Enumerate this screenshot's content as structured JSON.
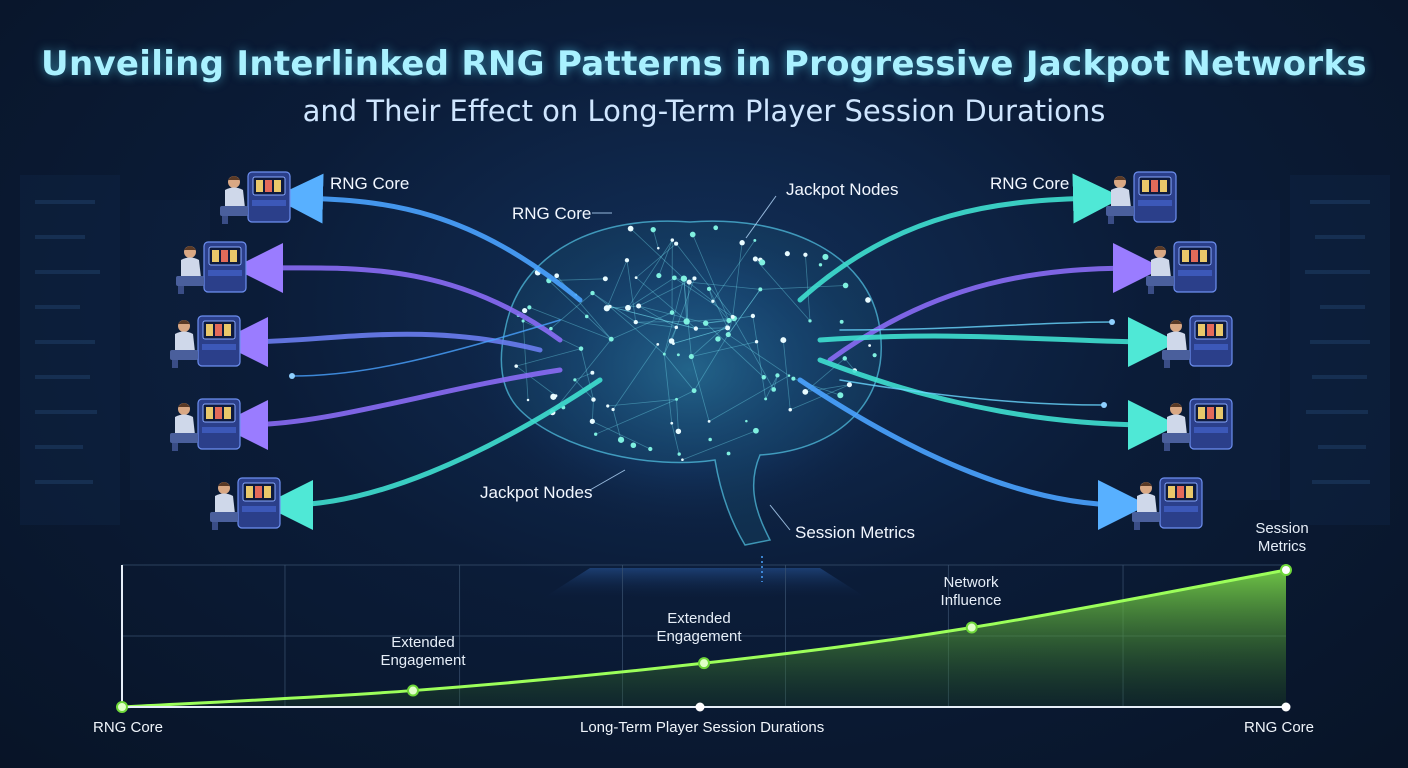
{
  "header": {
    "title": "Unveiling Interlinked RNG Patterns in Progressive Jackpot Networks",
    "subtitle": "and Their Effect on Long-Term Player Session Durations"
  },
  "diagram": {
    "labels": {
      "rng_core_left": "RNG Core",
      "rng_core_center": "RNG Core",
      "jackpot_nodes_top": "Jackpot Nodes",
      "rng_core_right": "RNG Core",
      "jackpot_nodes_bottom": "Jackpot Nodes",
      "session_metrics_center": "Session Metrics"
    },
    "colors": {
      "blue": "#4aa3ff",
      "purple": "#8a6cf5",
      "teal": "#3fe0d0",
      "green": "#8ef25a"
    },
    "players_left": 5,
    "players_right": 5
  },
  "chart_data": {
    "type": "area",
    "x_labels": {
      "left": "RNG Core",
      "center": "Long-Term Player Session Durations",
      "right": "RNG Core"
    },
    "points": [
      {
        "x": 0,
        "y": 0
      },
      {
        "x": 25,
        "y": 12,
        "label_line1": "Extended",
        "label_line2": "Engagement"
      },
      {
        "x": 50,
        "y": 32,
        "label_line1": "Extended",
        "label_line2": "Engagement"
      },
      {
        "x": 73,
        "y": 58,
        "label_line1": "Network",
        "label_line2": "Influence"
      },
      {
        "x": 100,
        "y": 100,
        "label_line1": "Session",
        "label_line2": "Metrics"
      }
    ],
    "xlim": [
      0,
      100
    ],
    "ylim": [
      0,
      100
    ],
    "grid": true
  }
}
